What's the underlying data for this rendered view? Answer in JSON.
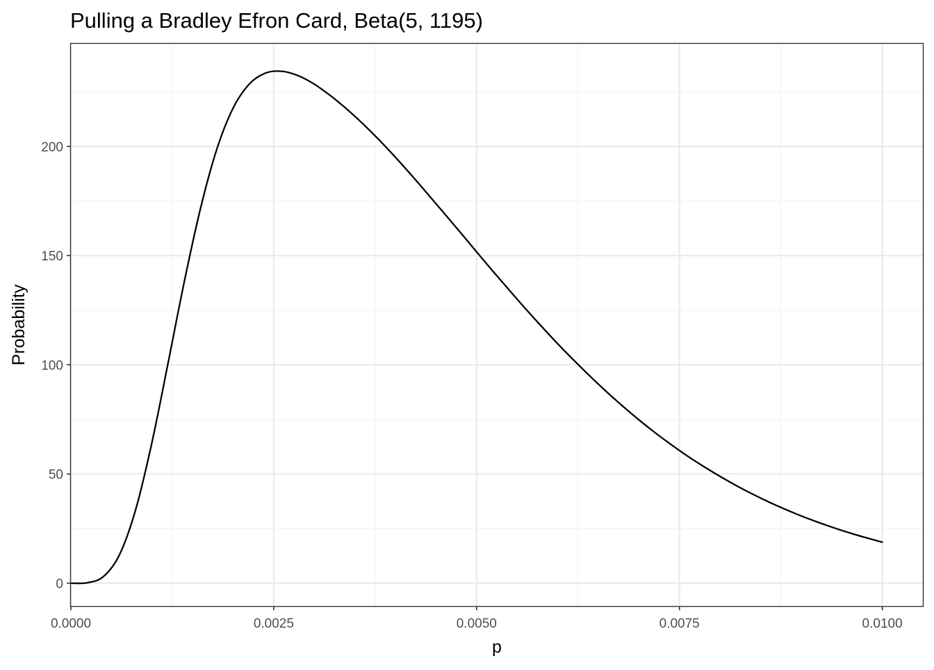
{
  "chart_data": {
    "type": "line",
    "title": "Pulling a Bradley Efron Card, Beta(5, 1195)",
    "xlabel": "p",
    "ylabel": "Probability",
    "xlim": [
      0,
      0.0105
    ],
    "ylim": [
      -10.5,
      247
    ],
    "x_major_ticks": [
      0,
      0.0025,
      0.005,
      0.0075,
      0.01
    ],
    "x_tick_labels": [
      "0.0000",
      "0.0025",
      "0.0050",
      "0.0075",
      "0.0100"
    ],
    "x_minor_ticks": [
      0.00125,
      0.00375,
      0.00625,
      0.00875
    ],
    "y_major_ticks": [
      0,
      50,
      100,
      150,
      200
    ],
    "y_tick_labels": [
      "0",
      "50",
      "100",
      "150",
      "200"
    ],
    "y_minor_ticks": [
      25,
      75,
      125,
      175,
      225
    ],
    "grid": true,
    "legend": "none",
    "line_color": "#000000",
    "series": [
      {
        "x": [
          0,
          0.0002,
          0.0004,
          0.0006,
          0.0008,
          0.001,
          0.0012,
          0.0014,
          0.0016,
          0.0018,
          0.002,
          0.0022,
          0.0024,
          0.0026,
          0.0028,
          0.003,
          0.0032,
          0.0033,
          0.0034,
          0.0036,
          0.0038,
          0.004,
          0.0042,
          0.0044,
          0.0046,
          0.0048,
          0.005,
          0.0052,
          0.0054,
          0.0056,
          0.0058,
          0.006,
          0.0062,
          0.0064,
          0.0066,
          0.0068,
          0.007,
          0.0072,
          0.0074,
          0.0076,
          0.0078,
          0.008,
          0.0082,
          0.0084,
          0.0086,
          0.0088,
          0.009,
          0.0092,
          0.0094,
          0.0096,
          0.0098,
          0.01
        ],
        "values": [
          0,
          0.2,
          3.0,
          13.1,
          33.9,
          64.6,
          101.2,
          138.5,
          172.0,
          198.9,
          217.6,
          228.6,
          233.6,
          234.4,
          232.4,
          228.5,
          223.2,
          220.2,
          217.1,
          210.3,
          202.9,
          195.0,
          186.7,
          178.1,
          169.4,
          160.6,
          151.7,
          142.9,
          134.3,
          125.8,
          117.6,
          109.6,
          102.0,
          94.7,
          87.7,
          81.1,
          74.8,
          68.9,
          63.4,
          58.2,
          53.4,
          48.9,
          44.7,
          40.8,
          37.2,
          33.9,
          30.8,
          28.0,
          25.4,
          23.0,
          20.8,
          18.8
        ]
      }
    ]
  }
}
